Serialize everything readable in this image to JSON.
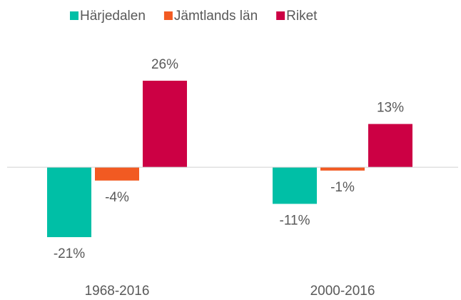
{
  "chart_data": {
    "type": "bar",
    "categories": [
      "1968-2016",
      "2000-2016"
    ],
    "series": [
      {
        "name": "Härjedalen",
        "color": "#00bfa6",
        "values": [
          -21,
          -11
        ],
        "value_labels": [
          "-21%",
          "-11%"
        ]
      },
      {
        "name": "Jämtlands län",
        "color": "#f25a22",
        "values": [
          -4,
          -1
        ],
        "value_labels": [
          "-4%",
          "-1%"
        ]
      },
      {
        "name": "Riket",
        "color": "#cc0044",
        "values": [
          26,
          13
        ],
        "value_labels": [
          "26%",
          "13%"
        ]
      }
    ],
    "legend": "top"
  }
}
